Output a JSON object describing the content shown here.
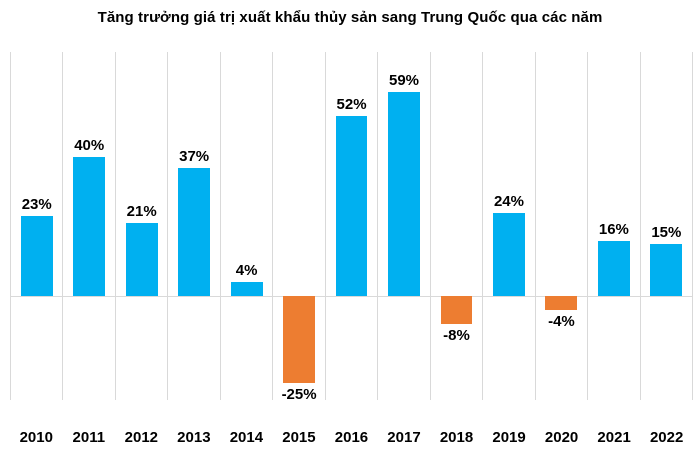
{
  "page": {
    "background": "#ffffff"
  },
  "chart_data": {
    "type": "bar",
    "title": "Tăng trưởng giá trị xuất khẩu thủy sản sang Trung Quốc qua các năm",
    "categories": [
      "2010",
      "2011",
      "2012",
      "2013",
      "2014",
      "2015",
      "2016",
      "2017",
      "2018",
      "2019",
      "2020",
      "2021",
      "2022"
    ],
    "values": [
      23,
      40,
      21,
      37,
      4,
      -25,
      52,
      59,
      -8,
      24,
      -4,
      16,
      15
    ],
    "labels": [
      "23%",
      "40%",
      "21%",
      "37%",
      "4%",
      "-25%",
      "52%",
      "59%",
      "-8%",
      "24%",
      "-4%",
      "16%",
      "15%"
    ],
    "xlabel": "",
    "ylabel": "",
    "ylim": [
      -30,
      70.5
    ],
    "grid": "vertical category gridlines only, no horizontal gridlines, no y-axis tick labels",
    "legend": "none",
    "data_label_position": "outside end (above positive bars, below negative bars)",
    "colors": {
      "positive": "#00B0F0",
      "negative": "#ED7D31",
      "gridline": "#D9D9D9",
      "zero_line": "#D9D9D9",
      "text": "#000000"
    }
  }
}
